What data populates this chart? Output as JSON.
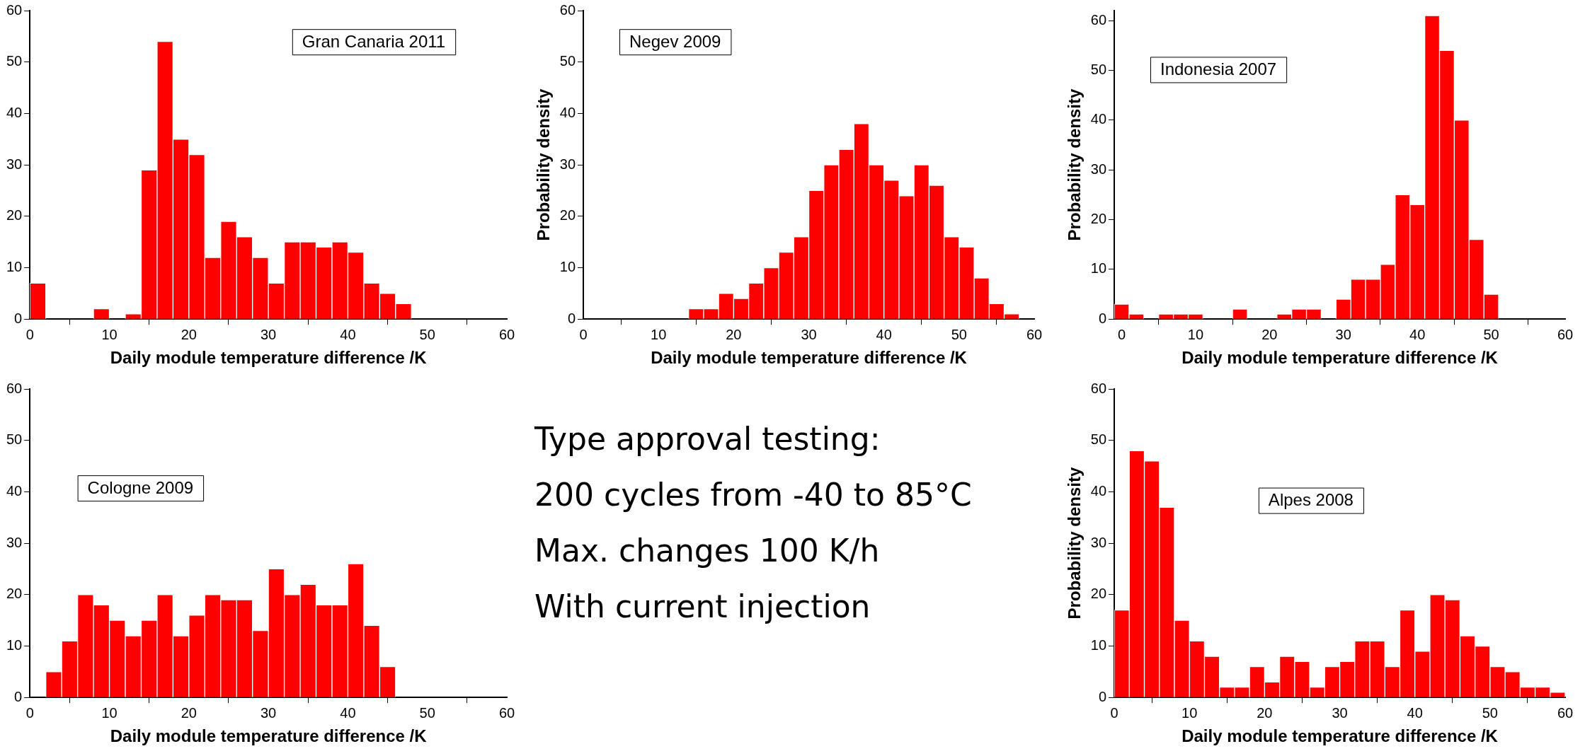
{
  "chart_data": [
    {
      "type": "histogram",
      "title": "Gran Canaria 2011",
      "xlabel": "Daily module temperature difference /K",
      "color": "#ff0000",
      "bins": [
        0,
        2,
        4,
        6,
        8,
        10,
        12,
        14,
        16,
        18,
        20,
        22,
        24,
        26,
        28,
        30,
        32,
        34,
        36,
        38,
        40,
        42,
        44,
        46,
        48
      ],
      "values": [
        7,
        0,
        0,
        0,
        2,
        0,
        1,
        29,
        54,
        35,
        32,
        12,
        19,
        16,
        12,
        7,
        15,
        15,
        14,
        15,
        13,
        7,
        5,
        3
      ],
      "xlim": [
        0,
        60
      ],
      "xticks": [
        0,
        10,
        20,
        30,
        40,
        50,
        60
      ],
      "ylim": [
        0,
        60
      ],
      "yticks": [
        0,
        10,
        20,
        30,
        40,
        50,
        60
      ],
      "grid": false
    },
    {
      "type": "histogram",
      "title": "Negev 2009",
      "xlabel": "Daily module temperature difference /K",
      "ylabel": "Probability density",
      "color": "#ff0000",
      "bins": [
        14,
        16,
        18,
        20,
        22,
        24,
        26,
        28,
        30,
        32,
        34,
        36,
        38,
        40,
        42,
        44,
        46,
        48,
        50,
        52,
        54,
        56,
        58
      ],
      "values": [
        2,
        2,
        5,
        4,
        7,
        10,
        13,
        16,
        25,
        30,
        33,
        38,
        30,
        27,
        24,
        30,
        26,
        16,
        14,
        8,
        3,
        1
      ],
      "xlim": [
        0,
        60
      ],
      "xticks": [
        0,
        10,
        20,
        30,
        40,
        50,
        60
      ],
      "ylim": [
        0,
        60
      ],
      "yticks": [
        0,
        10,
        20,
        30,
        40,
        50,
        60
      ],
      "grid": false
    },
    {
      "type": "histogram",
      "title": "Indonesia 2007",
      "xlabel": "Daily module temperature difference /K",
      "ylabel": "Probability density",
      "color": "#ff0000",
      "bins": [
        -1,
        1,
        3,
        5,
        7,
        9,
        11,
        13,
        15,
        17,
        19,
        21,
        23,
        25,
        27,
        29,
        31,
        33,
        35,
        37,
        39,
        41,
        43,
        45,
        47,
        49,
        51
      ],
      "values": [
        3,
        1,
        0,
        1,
        1,
        1,
        0,
        0,
        2,
        0,
        0,
        1,
        2,
        2,
        0,
        4,
        8,
        8,
        11,
        25,
        23,
        61,
        54,
        40,
        16,
        5
      ],
      "xlim": [
        -1,
        60
      ],
      "xticks": [
        0,
        10,
        20,
        30,
        40,
        50,
        60
      ],
      "ylim": [
        0,
        62
      ],
      "yticks": [
        0,
        10,
        20,
        30,
        40,
        50,
        60
      ],
      "grid": false
    },
    {
      "type": "histogram",
      "title": "Cologne 2009",
      "xlabel": "Daily module temperature difference /K",
      "color": "#ff0000",
      "bins": [
        2,
        4,
        6,
        8,
        10,
        12,
        14,
        16,
        18,
        20,
        22,
        24,
        26,
        28,
        30,
        32,
        34,
        36,
        38,
        40,
        42,
        44,
        46
      ],
      "values": [
        5,
        11,
        20,
        18,
        15,
        12,
        15,
        20,
        12,
        16,
        20,
        19,
        19,
        13,
        25,
        20,
        22,
        18,
        18,
        26,
        14,
        6
      ],
      "xlim": [
        0,
        60
      ],
      "xticks": [
        0,
        10,
        20,
        30,
        40,
        50,
        60
      ],
      "ylim": [
        0,
        60
      ],
      "yticks": [
        0,
        10,
        20,
        30,
        40,
        50,
        60
      ],
      "grid": false
    },
    {
      "type": "other",
      "annotations": [
        "Type approval testing:",
        "200 cycles from  -40 to 85°C",
        "Max. changes 100 K/h",
        "With current injection"
      ]
    },
    {
      "type": "histogram",
      "title": "Alpes 2008",
      "xlabel": "Daily module temperature difference /K",
      "ylabel": "Probability density",
      "color": "#ff0000",
      "bins": [
        0,
        2,
        4,
        6,
        8,
        10,
        12,
        14,
        16,
        18,
        20,
        22,
        24,
        26,
        28,
        30,
        32,
        34,
        36,
        38,
        40,
        42,
        44,
        46,
        48,
        50,
        52,
        54,
        56,
        58,
        60
      ],
      "values": [
        17,
        48,
        46,
        37,
        15,
        11,
        8,
        2,
        2,
        6,
        3,
        8,
        7,
        2,
        6,
        7,
        11,
        11,
        6,
        17,
        9,
        20,
        19,
        12,
        10,
        6,
        5,
        2,
        2,
        1
      ],
      "xlim": [
        0,
        60
      ],
      "xticks": [
        0,
        10,
        20,
        30,
        40,
        50,
        60
      ],
      "ylim": [
        0,
        60
      ],
      "yticks": [
        0,
        10,
        20,
        30,
        40,
        50,
        60
      ],
      "grid": false
    }
  ]
}
